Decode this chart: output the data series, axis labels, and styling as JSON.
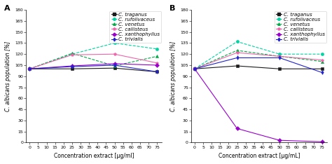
{
  "x": [
    0,
    25,
    50,
    75
  ],
  "panel_A": {
    "title": "A",
    "xlabel": "Concentration extract [μg/ml]",
    "ylabel": "C. albicans population [%]",
    "ylim": [
      0,
      180
    ],
    "yticks": [
      0,
      15,
      30,
      45,
      60,
      75,
      90,
      105,
      120,
      135,
      150,
      165,
      180
    ],
    "series": [
      {
        "label": "C. traganus",
        "color": "#1a1a1a",
        "marker": "s",
        "linestyle": "-",
        "values": [
          100,
          100,
          101,
          96
        ]
      },
      {
        "label": "C. rufolivaceus",
        "color": "#00d4a0",
        "marker": "o",
        "linestyle": "--",
        "values": [
          100,
          120,
          135,
          127
        ]
      },
      {
        "label": "C. venetus",
        "color": "#00aa44",
        "marker": "^",
        "linestyle": "--",
        "values": [
          100,
          121,
          104,
          117
        ]
      },
      {
        "label": "C. callisteus",
        "color": "#ee66aa",
        "marker": "p",
        "linestyle": "-",
        "values": [
          100,
          119,
          120,
          108
        ]
      },
      {
        "label": "C. xanthophyllus",
        "color": "#9900cc",
        "marker": "D",
        "linestyle": "-",
        "values": [
          100,
          104,
          107,
          105
        ]
      },
      {
        "label": "C. trivialis",
        "color": "#2222cc",
        "marker": "d",
        "linestyle": "-",
        "values": [
          100,
          103,
          105,
          96
        ]
      }
    ]
  },
  "panel_B": {
    "title": "B",
    "xlabel": "Concentration extract [μg/mL]",
    "ylabel": "C. albicans population [%]",
    "ylim": [
      0,
      180
    ],
    "yticks": [
      0,
      15,
      30,
      45,
      60,
      75,
      90,
      105,
      120,
      135,
      150,
      165,
      180
    ],
    "series": [
      {
        "label": "C. traganus",
        "color": "#1a1a1a",
        "marker": "s",
        "linestyle": "-",
        "values": [
          100,
          104,
          100,
          100
        ]
      },
      {
        "label": "C. rufolivaceus",
        "color": "#00d4a0",
        "marker": "o",
        "linestyle": "--",
        "values": [
          100,
          137,
          120,
          120
        ]
      },
      {
        "label": "C. venetus",
        "color": "#00aa44",
        "marker": "^",
        "linestyle": "--",
        "values": [
          100,
          125,
          117,
          110
        ]
      },
      {
        "label": "C. callisteus",
        "color": "#ee66aa",
        "marker": "p",
        "linestyle": "-",
        "values": [
          100,
          122,
          117,
          112
        ]
      },
      {
        "label": "C. xanthophyllus",
        "color": "#9900cc",
        "marker": "D",
        "linestyle": "-",
        "values": [
          100,
          19,
          3,
          1
        ]
      },
      {
        "label": "C. trivialis",
        "color": "#2222cc",
        "marker": "d",
        "linestyle": "-",
        "values": [
          100,
          115,
          115,
          95
        ]
      }
    ]
  },
  "bg_color": "#ffffff",
  "legend_fontsize": 5.0,
  "tick_fontsize": 4.5,
  "label_fontsize": 5.5,
  "markersize": 3.0,
  "linewidth": 0.8
}
